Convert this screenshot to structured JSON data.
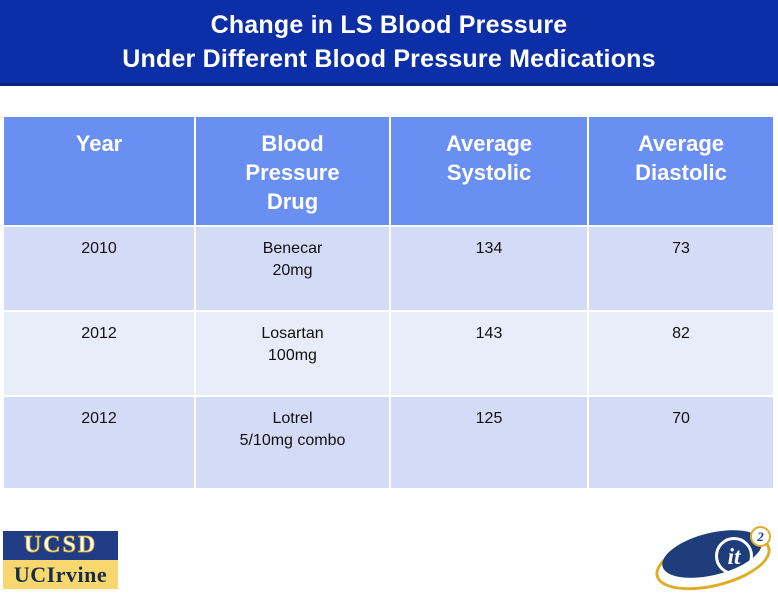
{
  "title": {
    "line1": "Change in LS Blood Pressure",
    "line2": "Under Different Blood Pressure Medications"
  },
  "table": {
    "headers": [
      {
        "label": "Year",
        "lines": [
          "Year"
        ]
      },
      {
        "label": "Blood Pressure Drug",
        "lines": [
          "Blood",
          "Pressure",
          "Drug"
        ]
      },
      {
        "label": "Average Systolic",
        "lines": [
          "Average",
          "Systolic"
        ]
      },
      {
        "label": "Average Diastolic",
        "lines": [
          "Average",
          "Diastolic"
        ]
      }
    ],
    "rows": [
      {
        "year": "2010",
        "drug": [
          "Benecar",
          "20mg"
        ],
        "systolic": "134",
        "diastolic": "73"
      },
      {
        "year": "2012",
        "drug": [
          "Losartan",
          "100mg"
        ],
        "systolic": "143",
        "diastolic": "82"
      },
      {
        "year": "2012",
        "drug": [
          "Lotrel",
          "5/10mg combo"
        ],
        "systolic": "125",
        "diastolic": "70"
      }
    ]
  },
  "logos": {
    "ucsd": "UCSD",
    "uci": "UCIrvine",
    "calit2_text": "it",
    "calit2_sup": "2"
  },
  "colors": {
    "banner_bg": "#0c2ea6",
    "banner_border": "#0a2184",
    "header_bg": "#6a8ff2",
    "row_odd_bg": "#d4dbf6",
    "row_even_bg": "#e9ecf9",
    "ucsd_navy": "#203c85",
    "uci_gold": "#f7d76e",
    "calit2_navy": "#1e3d7a",
    "calit2_gold": "#e0ac25",
    "title_text": "#ffffff",
    "data_text": "#111111"
  }
}
